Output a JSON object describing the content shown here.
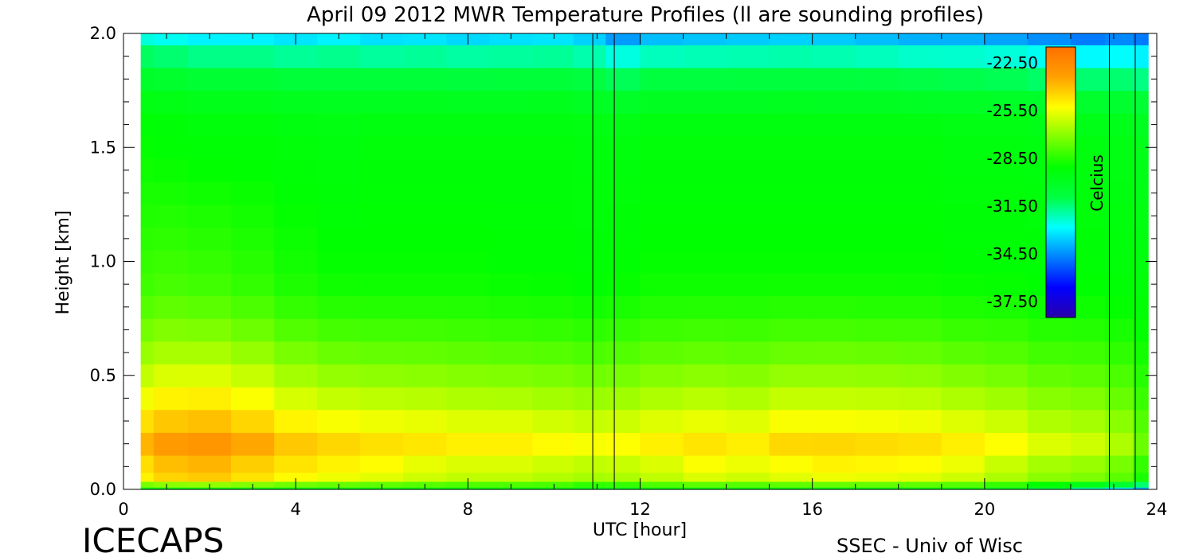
{
  "chart_data": {
    "type": "heatmap",
    "title": "April 09 2012 MWR Temperature Profiles (ll are sounding profiles)",
    "xlabel": "UTC [hour]",
    "ylabel": "Height [km]",
    "xlim": [
      0,
      24
    ],
    "ylim": [
      0,
      2.0
    ],
    "x_ticks": [
      "0",
      "4",
      "8",
      "12",
      "16",
      "20",
      "24"
    ],
    "y_ticks": [
      "0.0",
      "0.5",
      "1.0",
      "1.5",
      "2.0"
    ],
    "data_extent_hours": [
      0.4,
      23.8
    ],
    "colorbar": {
      "label": "Celcius",
      "ticks": [
        "-22.50",
        "-25.50",
        "-28.50",
        "-31.50",
        "-34.50",
        "-37.50"
      ],
      "range": [
        -38.5,
        -21.5
      ],
      "colors": [
        "#2a00aa",
        "#0000ff",
        "#0080ff",
        "#00ffff",
        "#00ff40",
        "#00ff00",
        "#80ff00",
        "#ffff00",
        "#ffa000",
        "#ff7000"
      ]
    },
    "sounding_times_utc": [
      10.9,
      11.4,
      22.9,
      23.5
    ],
    "time_hours": [
      0.4,
      1,
      2,
      3,
      4,
      5,
      6,
      7,
      8,
      9,
      10,
      10.9,
      11.5,
      12.5,
      13.5,
      14.5,
      15.5,
      16.5,
      17.5,
      18.5,
      19.5,
      20.5,
      21.5,
      22.5,
      23.1,
      23.8
    ],
    "heights_km": [
      0,
      0.02,
      0.05,
      0.1,
      0.2,
      0.3,
      0.4,
      0.5,
      0.6,
      0.7,
      0.8,
      0.9,
      1.0,
      1.1,
      1.2,
      1.3,
      1.4,
      1.5,
      1.6,
      1.7,
      1.8,
      1.9,
      2.0
    ],
    "temperature_profile": {
      "comment": "",
      "surface_c": [
        -29.5,
        -29.5,
        -29.5,
        -29.5,
        -29.5,
        -29.5,
        -29.5,
        -29.5,
        -29.5,
        -29.5,
        -29.5,
        -30.0,
        -30.0,
        -29.5,
        -29.5,
        -29.5,
        -29.5,
        -29.5,
        -29.5,
        -29.5,
        -29.5,
        -30.0,
        -31.0,
        -32.0,
        -33.0,
        -34.0
      ],
      "max_c": [
        -23.8,
        -23.2,
        -23.0,
        -23.5,
        -24.0,
        -24.3,
        -24.5,
        -24.8,
        -25.0,
        -25.0,
        -25.2,
        -25.4,
        -25.3,
        -25.0,
        -24.6,
        -24.8,
        -24.5,
        -24.3,
        -24.4,
        -24.5,
        -24.8,
        -25.3,
        -25.8,
        -26.0,
        -26.5,
        -27.5
      ],
      "max_height_km": [
        0.2,
        0.2,
        0.2,
        0.2,
        0.18,
        0.18,
        0.18,
        0.2,
        0.2,
        0.2,
        0.2,
        0.2,
        0.2,
        0.2,
        0.18,
        0.18,
        0.2,
        0.18,
        0.18,
        0.18,
        0.18,
        0.2,
        0.2,
        0.2,
        0.2,
        0.2
      ],
      "mid_1km_c": [
        -28.3,
        -28.2,
        -28.3,
        -28.5,
        -28.8,
        -29.0,
        -29.0,
        -29.0,
        -29.0,
        -29.1,
        -29.1,
        -29.2,
        -29.1,
        -29.0,
        -29.0,
        -29.0,
        -29.0,
        -29.0,
        -29.0,
        -29.0,
        -29.1,
        -29.1,
        -29.2,
        -29.2,
        -29.3,
        -29.4
      ],
      "upper_1_5km_c": [
        -29.0,
        -29.1,
        -29.2,
        -29.2,
        -29.3,
        -29.4,
        -29.3,
        -29.3,
        -29.3,
        -29.3,
        -29.3,
        -29.4,
        -29.4,
        -29.3,
        -29.3,
        -29.3,
        -29.3,
        -29.3,
        -29.3,
        -29.3,
        -29.4,
        -29.4,
        -29.5,
        -29.5,
        -29.6,
        -29.8
      ],
      "top_2km_c": [
        -32.5,
        -32.7,
        -33.0,
        -33.0,
        -33.2,
        -33.0,
        -33.3,
        -33.2,
        -33.4,
        -33.3,
        -33.2,
        -33.5,
        -34.3,
        -33.8,
        -33.7,
        -33.6,
        -33.5,
        -33.6,
        -33.8,
        -34.0,
        -34.0,
        -34.2,
        -34.5,
        -34.8,
        -34.6,
        -34.8
      ]
    }
  },
  "footer": {
    "left": "ICECAPS",
    "right": "SSEC - Univ of Wisc"
  }
}
